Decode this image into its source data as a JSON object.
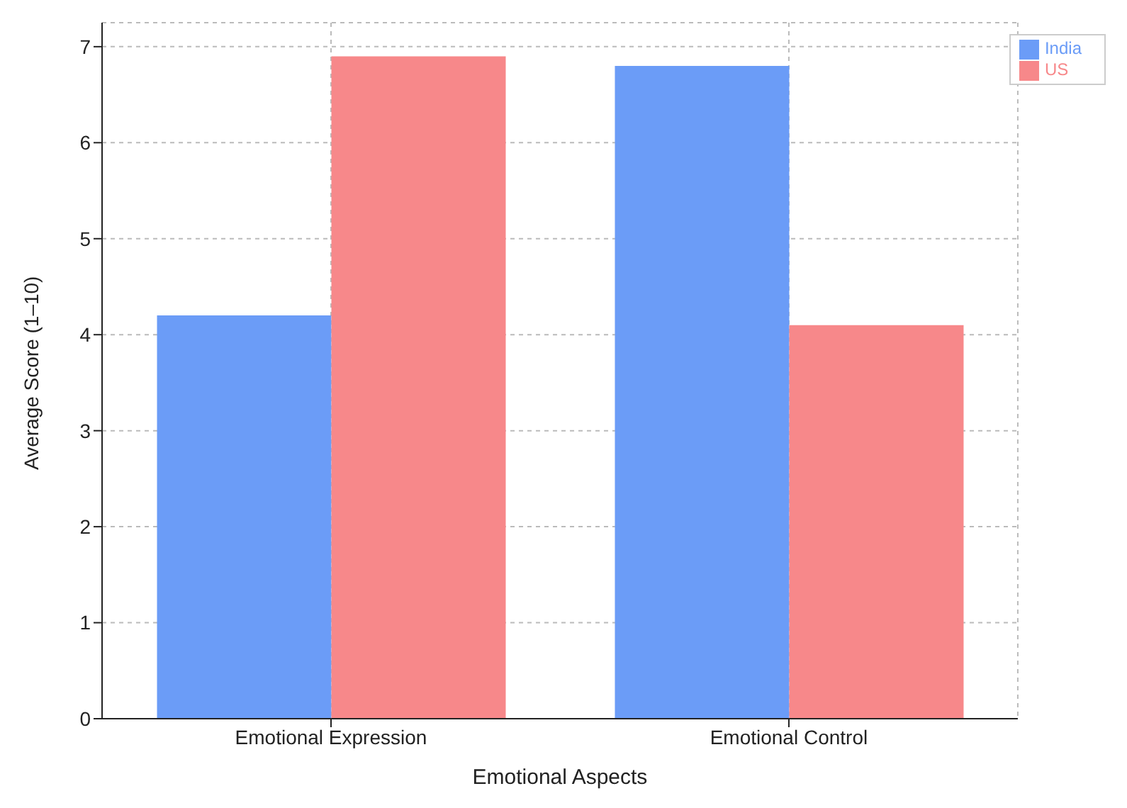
{
  "chart_data": {
    "type": "bar",
    "xlabel": "Emotional Aspects",
    "ylabel": "Average Score (1–10)",
    "categories": [
      "Emotional Expression",
      "Emotional Control"
    ],
    "series": [
      {
        "name": "India",
        "color": "#6b9cf7",
        "values": [
          4.2,
          6.8
        ]
      },
      {
        "name": "US",
        "color": "#f7888a",
        "values": [
          6.9,
          4.1
        ]
      }
    ],
    "ylim": [
      0,
      7.25
    ],
    "yticks": [
      0,
      1,
      2,
      3,
      4,
      5,
      6,
      7
    ],
    "grid": true,
    "legend": "top right"
  }
}
